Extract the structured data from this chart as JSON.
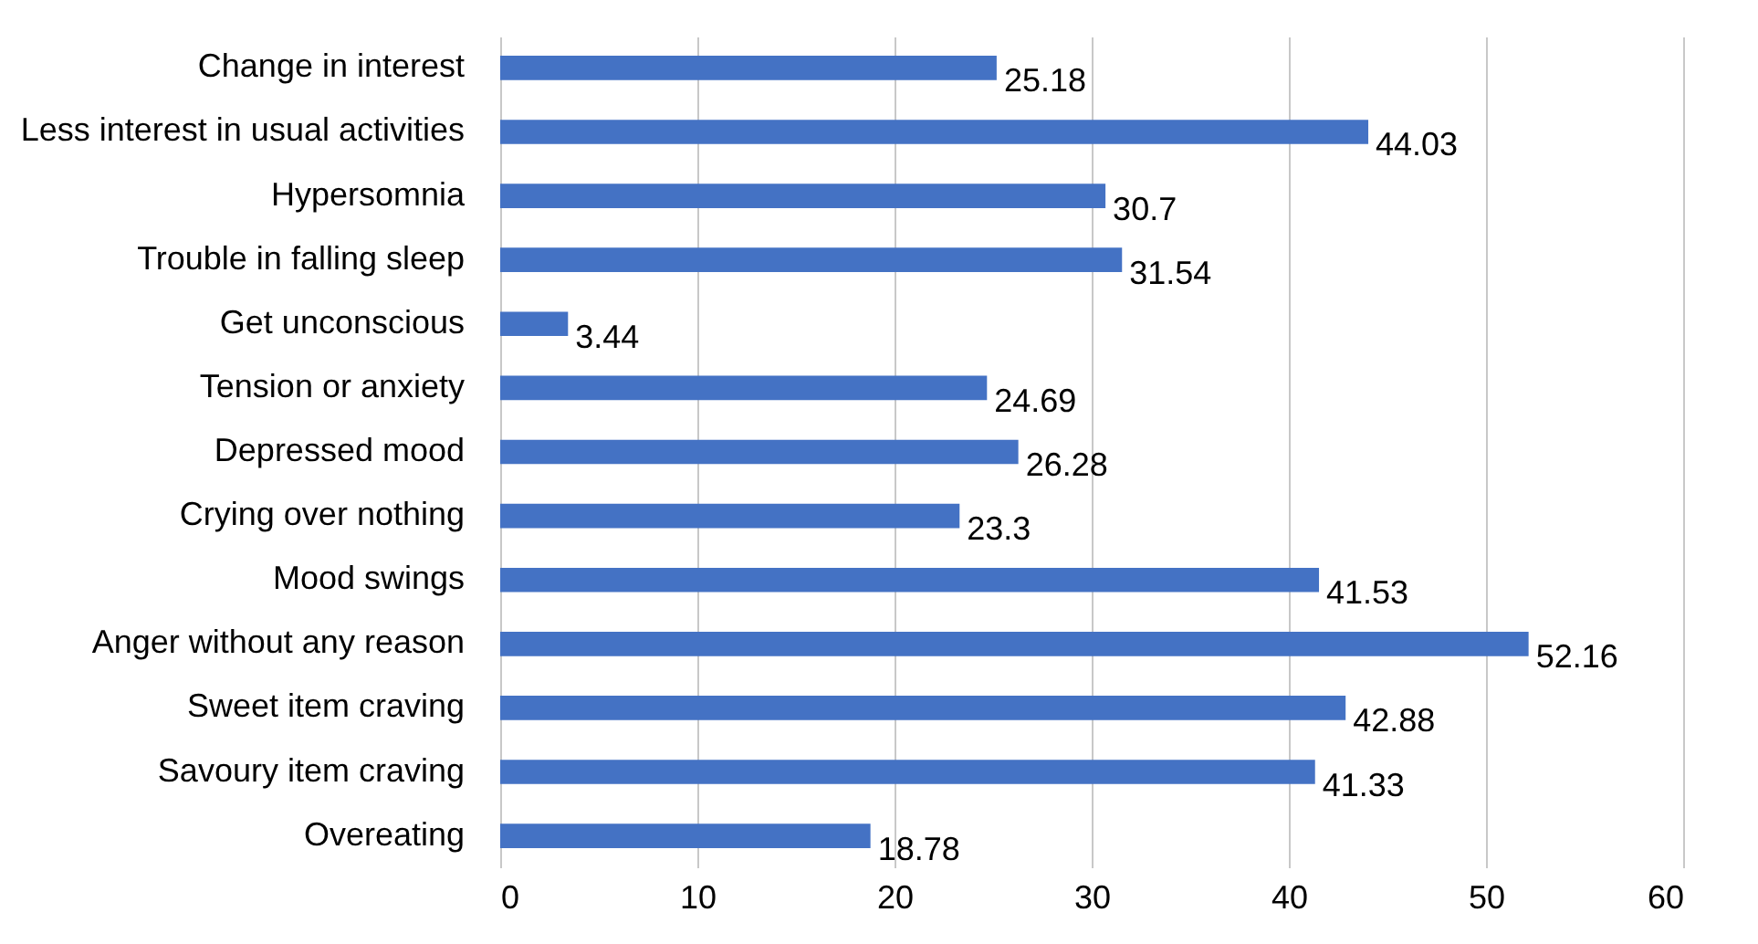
{
  "chart_data": {
    "type": "bar",
    "orientation": "horizontal",
    "categories": [
      "Change in interest",
      "Less interest in usual activities",
      "Hypersomnia",
      "Trouble in falling sleep",
      "Get unconscious",
      "Tension or anxiety",
      "Depressed mood",
      "Crying over nothing",
      "Mood swings",
      "Anger without any reason",
      "Sweet item craving",
      "Savoury item craving",
      "Overeating"
    ],
    "values": [
      25.18,
      44.03,
      30.7,
      31.54,
      3.44,
      24.69,
      26.28,
      23.3,
      41.53,
      52.16,
      42.88,
      41.33,
      18.78
    ],
    "color": "#4472c4",
    "xlim": [
      0,
      60
    ],
    "xticks": [
      0,
      10,
      20,
      30,
      40,
      50,
      60
    ],
    "grid": true,
    "data_labels": true
  }
}
